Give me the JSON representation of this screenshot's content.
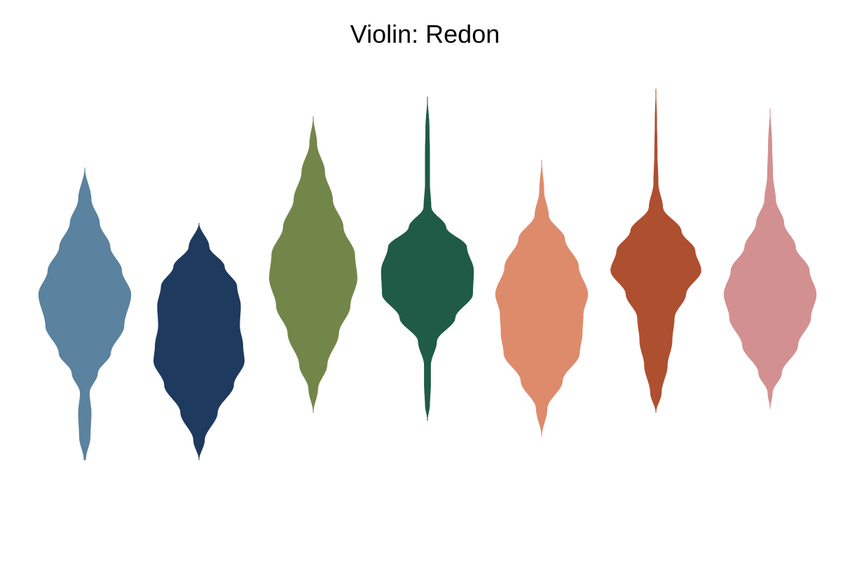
{
  "chart_data": {
    "type": "violin",
    "title": "Violin: Redon",
    "xlabel": "",
    "ylabel": "",
    "grid": false,
    "legend": "none",
    "ylim": [
      -5.5,
      5.5
    ],
    "series": [
      {
        "color": "#5b829e",
        "min": -4.2,
        "max": 3.2,
        "density": [
          [
            -4.2,
            0.02
          ],
          [
            -3.6,
            0.12
          ],
          [
            -3.0,
            0.14
          ],
          [
            -2.5,
            0.1
          ],
          [
            -2.0,
            0.28
          ],
          [
            -1.5,
            0.56
          ],
          [
            -0.8,
            0.85
          ],
          [
            0.0,
            1.0
          ],
          [
            0.6,
            0.8
          ],
          [
            1.2,
            0.55
          ],
          [
            1.8,
            0.32
          ],
          [
            2.4,
            0.14
          ],
          [
            3.2,
            0.0
          ]
        ]
      },
      {
        "color": "#1f3a5f",
        "min": -4.2,
        "max": 1.8,
        "density": [
          [
            -4.2,
            0.0
          ],
          [
            -3.7,
            0.12
          ],
          [
            -3.0,
            0.4
          ],
          [
            -2.3,
            0.75
          ],
          [
            -1.7,
            0.98
          ],
          [
            -1.3,
            0.95
          ],
          [
            -0.8,
            0.88
          ],
          [
            -0.3,
            0.9
          ],
          [
            0.2,
            0.82
          ],
          [
            0.7,
            0.55
          ],
          [
            1.2,
            0.22
          ],
          [
            1.8,
            0.0
          ]
        ]
      },
      {
        "color": "#73864a",
        "min": -3.0,
        "max": 4.5,
        "density": [
          [
            -3.0,
            0.0
          ],
          [
            -2.4,
            0.1
          ],
          [
            -1.8,
            0.3
          ],
          [
            -1.0,
            0.55
          ],
          [
            -0.3,
            0.8
          ],
          [
            0.4,
            0.95
          ],
          [
            1.0,
            0.9
          ],
          [
            1.7,
            0.65
          ],
          [
            2.4,
            0.42
          ],
          [
            3.1,
            0.25
          ],
          [
            3.8,
            0.08
          ],
          [
            4.5,
            0.0
          ]
        ]
      },
      {
        "color": "#1f5b47",
        "min": -3.2,
        "max": 5.0,
        "density": [
          [
            -3.2,
            0.0
          ],
          [
            -2.8,
            0.05
          ],
          [
            -2.3,
            0.07
          ],
          [
            -1.8,
            0.07
          ],
          [
            -1.2,
            0.2
          ],
          [
            -0.6,
            0.6
          ],
          [
            0.0,
            0.98
          ],
          [
            0.6,
            1.0
          ],
          [
            1.2,
            0.85
          ],
          [
            1.7,
            0.4
          ],
          [
            2.2,
            0.08
          ],
          [
            2.8,
            0.05
          ],
          [
            3.5,
            0.05
          ],
          [
            4.2,
            0.04
          ],
          [
            5.0,
            0.0
          ]
        ]
      },
      {
        "color": "#de8b6c",
        "min": -3.6,
        "max": 3.4,
        "density": [
          [
            -3.6,
            0.0
          ],
          [
            -2.9,
            0.12
          ],
          [
            -2.2,
            0.45
          ],
          [
            -1.5,
            0.82
          ],
          [
            -1.0,
            0.88
          ],
          [
            -0.5,
            0.9
          ],
          [
            0.0,
            1.0
          ],
          [
            0.7,
            0.8
          ],
          [
            1.4,
            0.5
          ],
          [
            2.0,
            0.15
          ],
          [
            2.6,
            0.05
          ],
          [
            3.4,
            0.0
          ]
        ]
      },
      {
        "color": "#ae4f30",
        "min": -3.0,
        "max": 5.2,
        "density": [
          [
            -3.0,
            0.0
          ],
          [
            -2.5,
            0.12
          ],
          [
            -1.8,
            0.25
          ],
          [
            -1.2,
            0.35
          ],
          [
            -0.6,
            0.4
          ],
          [
            0.0,
            0.65
          ],
          [
            0.6,
            0.98
          ],
          [
            1.1,
            0.85
          ],
          [
            1.6,
            0.55
          ],
          [
            2.2,
            0.15
          ],
          [
            2.8,
            0.05
          ],
          [
            3.6,
            0.03
          ],
          [
            4.4,
            0.02
          ],
          [
            5.2,
            0.0
          ]
        ]
      },
      {
        "color": "#d39090",
        "min": -2.9,
        "max": 4.7,
        "density": [
          [
            -2.9,
            0.0
          ],
          [
            -2.5,
            0.05
          ],
          [
            -2.0,
            0.25
          ],
          [
            -1.3,
            0.6
          ],
          [
            -0.6,
            0.88
          ],
          [
            0.0,
            1.0
          ],
          [
            0.6,
            0.85
          ],
          [
            1.2,
            0.55
          ],
          [
            1.8,
            0.3
          ],
          [
            2.4,
            0.12
          ],
          [
            3.0,
            0.06
          ],
          [
            3.8,
            0.04
          ],
          [
            4.7,
            0.0
          ]
        ]
      }
    ]
  }
}
